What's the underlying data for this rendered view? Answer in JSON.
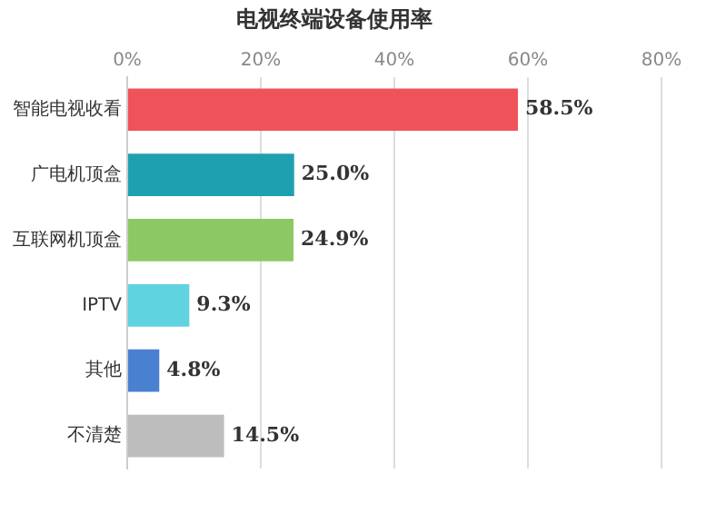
{
  "chart_data": {
    "type": "bar",
    "orientation": "horizontal",
    "title": "电视终端设备使用率",
    "categories": [
      "智能电视收看",
      "广电机顶盒",
      "互联网机顶盒",
      "IPTV",
      "其他",
      "不清楚"
    ],
    "values": [
      58.5,
      25.0,
      24.9,
      9.3,
      4.8,
      14.5
    ],
    "colors": [
      "#f0525a",
      "#1fa0b0",
      "#8cc864",
      "#5fd3e0",
      "#4a80d0",
      "#bdbdbd"
    ],
    "value_labels": [
      "58.5%",
      "25.0%",
      "24.9%",
      "9.3%",
      "4.8%",
      "14.5%"
    ],
    "xlim": [
      0,
      80
    ],
    "xticks": [
      {
        "value": 0,
        "label": "0%"
      },
      {
        "value": 20,
        "label": "20%"
      },
      {
        "value": 40,
        "label": "40%"
      },
      {
        "value": 60,
        "label": "60%"
      },
      {
        "value": 80,
        "label": "80%"
      }
    ],
    "grid": "x"
  }
}
